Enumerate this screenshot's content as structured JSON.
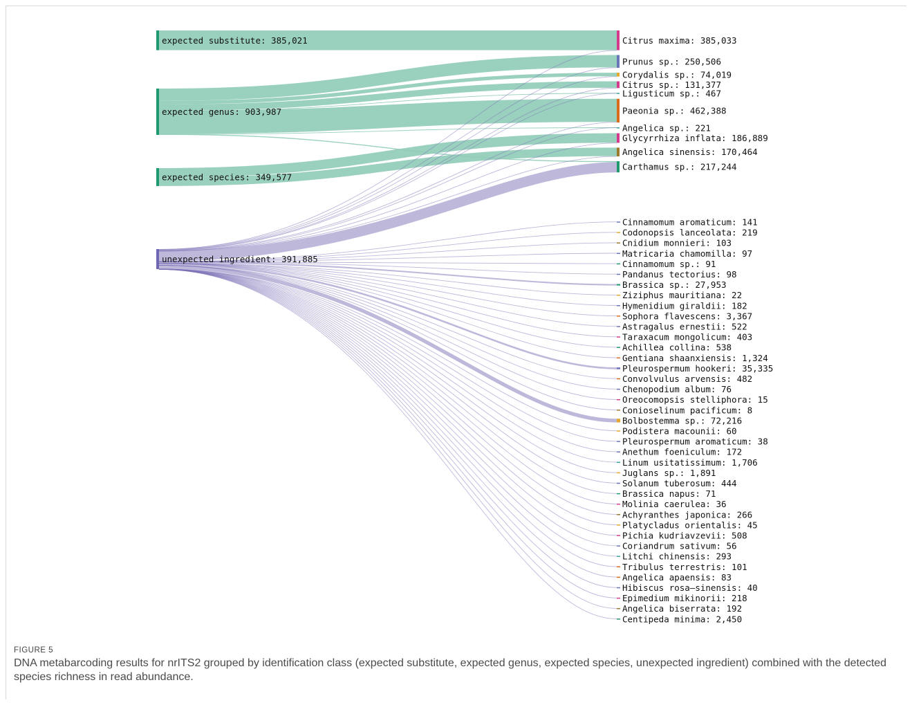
{
  "figure": {
    "label": "FIGURE 5",
    "caption": "DNA metabarcoding results for nrITS2 grouped by identification class (expected substitute, expected genus, expected species, unexpected ingredient) combined with the detected species richness in read abundance."
  },
  "colors": {
    "expected_link": "#8fcbb7",
    "unexpected_link": "#7d72b8",
    "expected_node": "#1f9a6e",
    "unexpected_node": "#6f67b3"
  },
  "chart_data": {
    "type": "sankey",
    "sources": [
      {
        "name": "expected substitute",
        "label": "expected substitute: 385,021",
        "value": 385021
      },
      {
        "name": "expected genus",
        "label": "expected genus: 903,987",
        "value": 903987
      },
      {
        "name": "expected species",
        "label": "expected species: 349,577",
        "value": 349577
      },
      {
        "name": "unexpected ingredient",
        "label": "unexpected ingredient: 391,885",
        "value": 391885
      }
    ],
    "targets": [
      {
        "name": "Citrus maxima",
        "label": "Citrus maxima: 385,033",
        "value": 385033,
        "color": "#d63a8c"
      },
      {
        "name": "Prunus sp.",
        "label": "Prunus sp.: 250,506",
        "value": 250506,
        "color": "#6b76b8"
      },
      {
        "name": "Corydalis sp.",
        "label": "Corydalis sp.: 74,019",
        "value": 74019,
        "color": "#e3a82b"
      },
      {
        "name": "Citrus sp.",
        "label": "Citrus sp.: 131,377",
        "value": 131377,
        "color": "#d63a8c"
      },
      {
        "name": "Ligusticum sp.",
        "label": "Ligusticum sp.: 467",
        "value": 467,
        "color": "#3aa39a"
      },
      {
        "name": "Paeonia sp.",
        "label": "Paeonia sp.: 462,388",
        "value": 462388,
        "color": "#d96b1a"
      },
      {
        "name": "Angelica sp.",
        "label": "Angelica sp.: 221",
        "value": 221,
        "color": "#3aa39a"
      },
      {
        "name": "Glycyrrhiza inflata",
        "label": "Glycyrrhiza inflata: 186,889",
        "value": 186889,
        "color": "#d63a8c"
      },
      {
        "name": "Angelica sinensis",
        "label": "Angelica sinensis: 170,464",
        "value": 170464,
        "color": "#9c7a2b"
      },
      {
        "name": "Carthamus sp.",
        "label": "Carthamus sp.: 217,244",
        "value": 217244,
        "color": "#1f9a6e"
      },
      {
        "name": "Cinnamomum aromaticum",
        "label": "Cinnamomum aromaticum: 141",
        "value": 141,
        "color": "#6b76b8"
      },
      {
        "name": "Codonopsis lanceolata",
        "label": "Codonopsis lanceolata: 219",
        "value": 219,
        "color": "#e3a82b"
      },
      {
        "name": "Cnidium monnieri",
        "label": "Cnidium monnieri: 103",
        "value": 103,
        "color": "#9c7a2b"
      },
      {
        "name": "Matricaria chamomilla",
        "label": "Matricaria chamomilla: 97",
        "value": 97,
        "color": "#6b76b8"
      },
      {
        "name": "Cinnamomum sp.",
        "label": "Cinnamomum sp.: 91",
        "value": 91,
        "color": "#1f9a6e"
      },
      {
        "name": "Pandanus tectorius",
        "label": "Pandanus tectorius: 98",
        "value": 98,
        "color": "#6b76b8"
      },
      {
        "name": "Brassica sp.",
        "label": "Brassica sp.: 27,953",
        "value": 27953,
        "color": "#1f9a6e"
      },
      {
        "name": "Ziziphus mauritiana",
        "label": "Ziziphus mauritiana: 22",
        "value": 22,
        "color": "#e3a82b"
      },
      {
        "name": "Hymenidium giraldii",
        "label": "Hymenidium giraldii: 182",
        "value": 182,
        "color": "#6b76b8"
      },
      {
        "name": "Sophora flavescens",
        "label": "Sophora flavescens: 3,367",
        "value": 3367,
        "color": "#d96b1a"
      },
      {
        "name": "Astragalus ernestii",
        "label": "Astragalus ernestii: 522",
        "value": 522,
        "color": "#6b76b8"
      },
      {
        "name": "Taraxacum mongolicum",
        "label": "Taraxacum mongolicum: 403",
        "value": 403,
        "color": "#d63a8c"
      },
      {
        "name": "Achillea collina",
        "label": "Achillea collina: 538",
        "value": 538,
        "color": "#1f9a6e"
      },
      {
        "name": "Gentiana shaanxiensis",
        "label": "Gentiana shaanxiensis: 1,324",
        "value": 1324,
        "color": "#d96b1a"
      },
      {
        "name": "Pleurospermum hookeri",
        "label": "Pleurospermum hookeri: 35,335",
        "value": 35335,
        "color": "#6b76b8"
      },
      {
        "name": "Convolvulus arvensis",
        "label": "Convolvulus arvensis: 482",
        "value": 482,
        "color": "#d96b1a"
      },
      {
        "name": "Chenopodium album",
        "label": "Chenopodium album: 76",
        "value": 76,
        "color": "#6b76b8"
      },
      {
        "name": "Oreocomopsis stelliphora",
        "label": "Oreocomopsis stelliphora: 15",
        "value": 15,
        "color": "#d63a8c"
      },
      {
        "name": "Conioselinum pacificum",
        "label": "Conioselinum pacificum: 8",
        "value": 8,
        "color": "#9c7a2b"
      },
      {
        "name": "Bolbostemma sp.",
        "label": "Bolbostemma sp.: 72,216",
        "value": 72216,
        "color": "#e3a82b"
      },
      {
        "name": "Podistera macounii",
        "label": "Podistera macounii: 60",
        "value": 60,
        "color": "#e3a82b"
      },
      {
        "name": "Pleurospermum aromaticum",
        "label": "Pleurospermum aromaticum: 38",
        "value": 38,
        "color": "#6b76b8"
      },
      {
        "name": "Anethum foeniculum",
        "label": "Anethum foeniculum: 172",
        "value": 172,
        "color": "#6b76b8"
      },
      {
        "name": "Linum usitatissimum",
        "label": "Linum usitatissimum: 1,706",
        "value": 1706,
        "color": "#3aa39a"
      },
      {
        "name": "Juglans sp.",
        "label": "Juglans sp.: 1,891",
        "value": 1891,
        "color": "#e3a82b"
      },
      {
        "name": "Solanum tuberosum",
        "label": "Solanum tuberosum: 444",
        "value": 444,
        "color": "#6b76b8"
      },
      {
        "name": "Brassica napus",
        "label": "Brassica napus: 71",
        "value": 71,
        "color": "#1f9a6e"
      },
      {
        "name": "Molinia caerulea",
        "label": "Molinia caerulea: 36",
        "value": 36,
        "color": "#d63a8c"
      },
      {
        "name": "Achyranthes japonica",
        "label": "Achyranthes japonica: 266",
        "value": 266,
        "color": "#9c7a2b"
      },
      {
        "name": "Platycladus orientalis",
        "label": "Platycladus orientalis: 45",
        "value": 45,
        "color": "#e3a82b"
      },
      {
        "name": "Pichia kudriavzevii",
        "label": "Pichia kudriavzevii: 508",
        "value": 508,
        "color": "#d63a8c"
      },
      {
        "name": "Coriandrum sativum",
        "label": "Coriandrum sativum: 56",
        "value": 56,
        "color": "#6b76b8"
      },
      {
        "name": "Litchi chinensis",
        "label": "Litchi chinensis: 293",
        "value": 293,
        "color": "#3aa39a"
      },
      {
        "name": "Tribulus terrestris",
        "label": "Tribulus terrestris: 101",
        "value": 101,
        "color": "#d96b1a"
      },
      {
        "name": "Angelica apaensis",
        "label": "Angelica apaensis: 83",
        "value": 83,
        "color": "#d96b1a"
      },
      {
        "name": "Hibiscus rosa-sinensis",
        "label": "Hibiscus rosa–sinensis: 40",
        "value": 40,
        "color": "#6b76b8"
      },
      {
        "name": "Epimedium mikinorii",
        "label": "Epimedium mikinorii: 218",
        "value": 218,
        "color": "#d63a8c"
      },
      {
        "name": "Angelica biserrata",
        "label": "Angelica biserrata: 192",
        "value": 192,
        "color": "#9c7a2b"
      },
      {
        "name": "Centipeda minima",
        "label": "Centipeda minima: 2,450",
        "value": 2450,
        "color": "#1f9a6e"
      }
    ],
    "links": [
      {
        "source": "expected substitute",
        "target": "Citrus maxima",
        "value": 385021
      },
      {
        "source": "expected genus",
        "target": "Prunus sp.",
        "value": 240000
      },
      {
        "source": "expected genus",
        "target": "Corydalis sp.",
        "value": 70000
      },
      {
        "source": "expected genus",
        "target": "Citrus sp.",
        "value": 125000
      },
      {
        "source": "expected genus",
        "target": "Ligusticum sp.",
        "value": 400
      },
      {
        "source": "expected genus",
        "target": "Paeonia sp.",
        "value": 450000
      },
      {
        "source": "expected genus",
        "target": "Angelica sp.",
        "value": 200
      },
      {
        "source": "expected genus",
        "target": "Carthamus sp.",
        "value": 18387
      },
      {
        "source": "expected species",
        "target": "Glycyrrhiza inflata",
        "value": 185000
      },
      {
        "source": "expected species",
        "target": "Angelica sinensis",
        "value": 164577
      },
      {
        "source": "unexpected ingredient",
        "target": "Citrus maxima",
        "value": 12
      },
      {
        "source": "unexpected ingredient",
        "target": "Prunus sp.",
        "value": 10506
      },
      {
        "source": "unexpected ingredient",
        "target": "Corydalis sp.",
        "value": 4019
      },
      {
        "source": "unexpected ingredient",
        "target": "Citrus sp.",
        "value": 6377
      },
      {
        "source": "unexpected ingredient",
        "target": "Ligusticum sp.",
        "value": 67
      },
      {
        "source": "unexpected ingredient",
        "target": "Paeonia sp.",
        "value": 12388
      },
      {
        "source": "unexpected ingredient",
        "target": "Angelica sp.",
        "value": 21
      },
      {
        "source": "unexpected ingredient",
        "target": "Glycyrrhiza inflata",
        "value": 1889
      },
      {
        "source": "unexpected ingredient",
        "target": "Angelica sinensis",
        "value": 5887
      },
      {
        "source": "unexpected ingredient",
        "target": "Carthamus sp.",
        "value": 198857
      }
    ]
  }
}
